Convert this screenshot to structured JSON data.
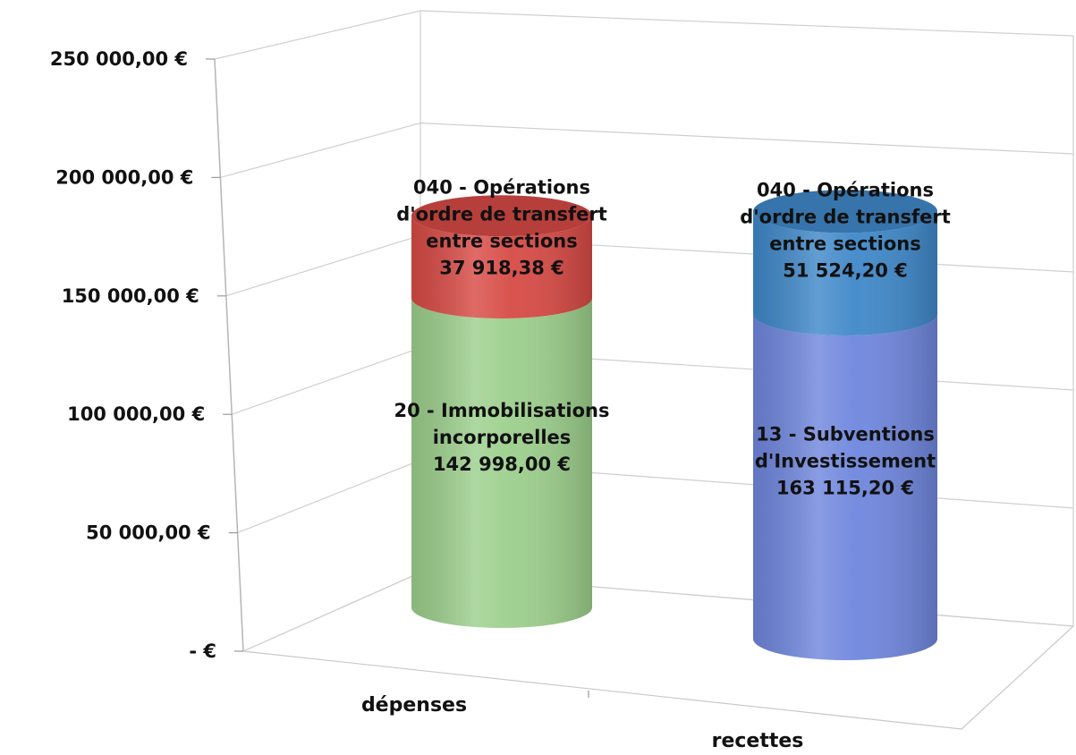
{
  "chart_data": {
    "type": "bar",
    "stacked": true,
    "style": "3d-cylinder",
    "title": "",
    "xlabel": "",
    "ylabel": "",
    "ylim": [
      0,
      250000
    ],
    "grid": true,
    "legend": "none",
    "y_ticks": [
      {
        "value": 0,
        "label": "-  €"
      },
      {
        "value": 50000,
        "label": "50 000,00 €"
      },
      {
        "value": 100000,
        "label": "100 000,00 €"
      },
      {
        "value": 150000,
        "label": "150 000,00 €"
      },
      {
        "value": 200000,
        "label": "200 000,00 €"
      },
      {
        "value": 250000,
        "label": "250 000,00 €"
      }
    ],
    "categories": [
      "dépenses",
      "recettes"
    ],
    "bars": [
      {
        "category": "dépenses",
        "segments": [
          {
            "value": 142998.0,
            "color": "#9ccf8c",
            "label_lines": [
              "20 - Immobilisations",
              "incorporelles",
              "142 998,00 €"
            ]
          },
          {
            "value": 37918.38,
            "color": "#d74a45",
            "label_lines": [
              "040 - Opérations",
              "d'ordre de transfert",
              "entre sections",
              "37 918,38 €"
            ]
          }
        ]
      },
      {
        "category": "recettes",
        "segments": [
          {
            "value": 163115.2,
            "color": "#6f86dd",
            "label_lines": [
              "13 - Subventions",
              "d'Investissement",
              "163 115,20 €"
            ]
          },
          {
            "value": 51524.2,
            "color": "#3f88c9",
            "label_lines": [
              "040 - Opérations",
              "d'ordre de transfert",
              "entre sections",
              "51 524,20 €"
            ]
          }
        ]
      }
    ]
  }
}
